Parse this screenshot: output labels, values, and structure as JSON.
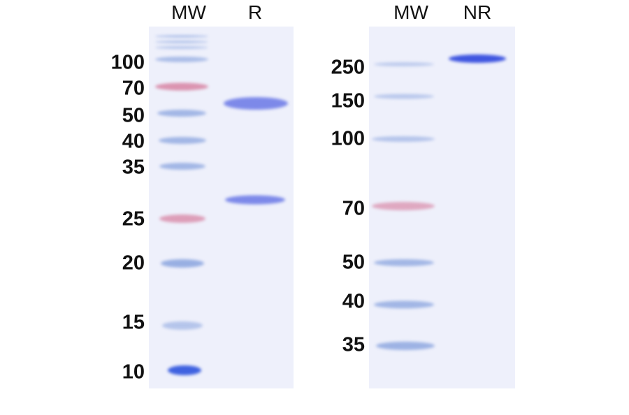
{
  "left_gel": {
    "lanes": [
      "MW",
      "R"
    ],
    "marker_labels": [
      "100",
      "70",
      "50",
      "40",
      "35",
      "25",
      "20",
      "15",
      "10"
    ]
  },
  "right_gel": {
    "lanes": [
      "MW",
      "NR"
    ],
    "marker_labels": [
      "250",
      "150",
      "100",
      "70",
      "50",
      "40",
      "35"
    ]
  },
  "colors": {
    "gel_background": "#eef0fb",
    "marker_band": "#8fa8e0",
    "prestain_marker": "#d98aa8",
    "sample_band": "#6a78e6"
  }
}
